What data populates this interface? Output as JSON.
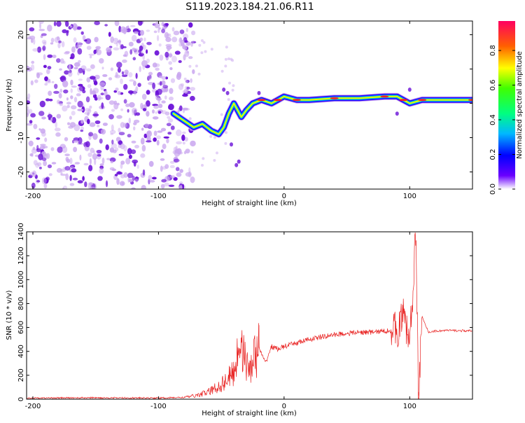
{
  "title": "S119.2023.184.21.06.R11",
  "colors": {
    "snr_line": "#e8201f",
    "blob_dark": "#6a10d8",
    "blob_light": "#c9a6ef",
    "track_palette": [
      "#1a00ff",
      "#00d0ff",
      "#00ff60",
      "#ffff00",
      "#ff7f00",
      "#ff0000"
    ]
  },
  "chart_data": [
    {
      "type": "heatmap",
      "xlabel": "Height of straight line (km)",
      "ylabel": "Frequency (Hz)",
      "colorbar_label": "Normalized spectral amplitude",
      "xlim": [
        -205,
        150
      ],
      "ylim": [
        -25,
        24
      ],
      "xticks": [
        -200,
        -100,
        0,
        100
      ],
      "yticks": [
        -20,
        -10,
        0,
        10,
        20
      ],
      "colorbar_ticks": [
        "0.0",
        "0.2",
        "0.4",
        "0.6",
        "0.8"
      ],
      "colorbar_range": [
        0,
        0.97
      ],
      "noise_region_x": [
        -205,
        -80
      ],
      "ridge": [
        {
          "x": -88,
          "y": -3
        },
        {
          "x": -80,
          "y": -5
        },
        {
          "x": -72,
          "y": -7
        },
        {
          "x": -65,
          "y": -6
        },
        {
          "x": -58,
          "y": -8
        },
        {
          "x": -52,
          "y": -9
        },
        {
          "x": -48,
          "y": -7
        },
        {
          "x": -44,
          "y": -3
        },
        {
          "x": -40,
          "y": 0
        },
        {
          "x": -34,
          "y": -4
        },
        {
          "x": -30,
          "y": -2
        },
        {
          "x": -25,
          "y": 0
        },
        {
          "x": -18,
          "y": 1
        },
        {
          "x": -10,
          "y": 0
        },
        {
          "x": -5,
          "y": 1
        },
        {
          "x": 0,
          "y": 2
        },
        {
          "x": 10,
          "y": 1
        },
        {
          "x": 20,
          "y": 1
        },
        {
          "x": 40,
          "y": 1.5
        },
        {
          "x": 60,
          "y": 1.5
        },
        {
          "x": 80,
          "y": 2
        },
        {
          "x": 90,
          "y": 2
        },
        {
          "x": 95,
          "y": 1
        },
        {
          "x": 100,
          "y": 0
        },
        {
          "x": 110,
          "y": 1
        },
        {
          "x": 130,
          "y": 1
        },
        {
          "x": 150,
          "y": 1
        }
      ]
    },
    {
      "type": "line",
      "xlabel": "Height of straight line (km)",
      "ylabel": "SNR (10 * v/v)",
      "xlim": [
        -205,
        150
      ],
      "ylim": [
        0,
        1400
      ],
      "xticks": [
        -200,
        -100,
        0,
        100
      ],
      "yticks": [
        0,
        200,
        400,
        600,
        800,
        1000,
        1200,
        1400
      ],
      "series": [
        {
          "points": [
            [
              -205,
              10
            ],
            [
              -150,
              12
            ],
            [
              -100,
              10
            ],
            [
              -80,
              15
            ],
            [
              -70,
              30
            ],
            [
              -60,
              60
            ],
            [
              -50,
              120
            ],
            [
              -40,
              220
            ],
            [
              -34,
              540
            ],
            [
              -30,
              250
            ],
            [
              -25,
              320
            ],
            [
              -20,
              430
            ],
            [
              -15,
              300
            ],
            [
              -10,
              440
            ],
            [
              -5,
              420
            ],
            [
              0,
              440
            ],
            [
              10,
              470
            ],
            [
              20,
              500
            ],
            [
              30,
              520
            ],
            [
              40,
              540
            ],
            [
              50,
              550
            ],
            [
              60,
              560
            ],
            [
              70,
              560
            ],
            [
              80,
              570
            ],
            [
              90,
              580
            ],
            [
              95,
              700
            ],
            [
              100,
              480
            ],
            [
              103,
              1000
            ],
            [
              105,
              1400
            ],
            [
              107,
              60
            ],
            [
              110,
              680
            ],
            [
              115,
              560
            ],
            [
              120,
              570
            ],
            [
              130,
              575
            ],
            [
              150,
              570
            ]
          ]
        }
      ]
    }
  ]
}
